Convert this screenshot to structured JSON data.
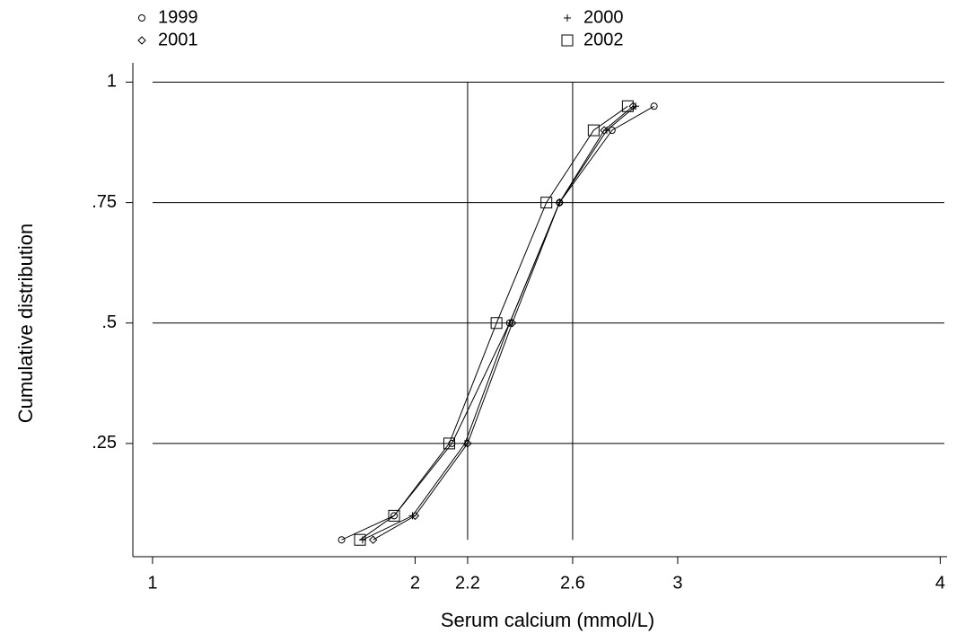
{
  "chart_data": {
    "type": "line",
    "x_label": "Serum calcium (mmol/L)",
    "y_label": "Cumulative distribution",
    "xlim": [
      0.925,
      4.06
    ],
    "ylim": [
      0.015,
      1.04
    ],
    "xticks": [
      1,
      2,
      2.2,
      2.6,
      3,
      4
    ],
    "yticks": [
      {
        "value": 0.25,
        "label": ".25"
      },
      {
        "value": 0.5,
        "label": ".5"
      },
      {
        "value": 0.75,
        "label": ".75"
      },
      1
    ],
    "xlines": [
      2.2,
      2.6
    ],
    "grid": true,
    "series": [
      {
        "name": "1999",
        "marker": "circle",
        "color": "#000000",
        "x": [
          1.72,
          1.92,
          2.14,
          2.36,
          2.55,
          2.75,
          2.91
        ],
        "values": [
          0.05,
          0.1,
          0.25,
          0.5,
          0.75,
          0.9,
          0.95
        ]
      },
      {
        "name": "2000",
        "marker": "plus",
        "color": "#000000",
        "x": [
          1.8,
          1.99,
          2.19,
          2.36,
          2.55,
          2.73,
          2.84
        ],
        "values": [
          0.05,
          0.1,
          0.25,
          0.5,
          0.75,
          0.9,
          0.95
        ]
      },
      {
        "name": "2001",
        "marker": "diamond",
        "color": "#000000",
        "x": [
          1.84,
          2.0,
          2.2,
          2.37,
          2.55,
          2.72,
          2.83
        ],
        "values": [
          0.05,
          0.1,
          0.25,
          0.5,
          0.75,
          0.9,
          0.95
        ]
      },
      {
        "name": "2002",
        "marker": "square",
        "color": "#000000",
        "x": [
          1.79,
          1.92,
          2.13,
          2.31,
          2.5,
          2.68,
          2.81
        ],
        "values": [
          0.05,
          0.1,
          0.25,
          0.5,
          0.75,
          0.9,
          0.95
        ]
      }
    ]
  }
}
